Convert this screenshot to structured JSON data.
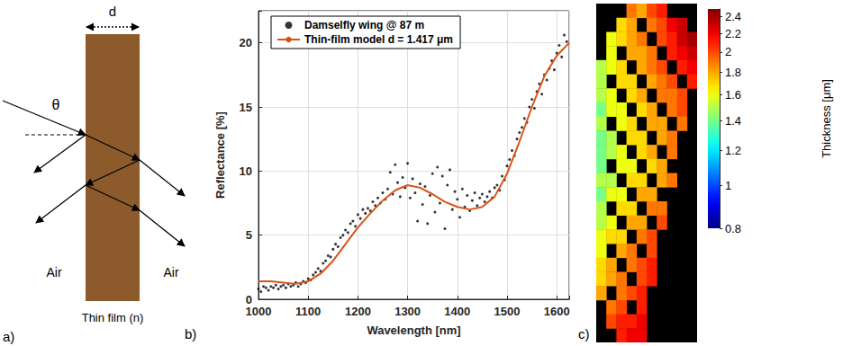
{
  "diagram": {
    "panel_label": "a)",
    "width_label": "d",
    "angle_label": "θ",
    "media": [
      "Air",
      "Air"
    ],
    "film_label": "Thin film (n)"
  },
  "chart_data": [
    {
      "panel_label": "b)",
      "type": "scatter",
      "x_label": "Wavelength [nm]",
      "y_label": "Reflectance [%]",
      "xlim": [
        1000,
        1625
      ],
      "ylim": [
        0,
        22.5
      ],
      "xticks": [
        1000,
        1100,
        1200,
        1300,
        1400,
        1500,
        1600
      ],
      "yticks": [
        0,
        5,
        10,
        15,
        20
      ],
      "grid": true,
      "legend": "upper left",
      "series": [
        {
          "name": "Damselfly wing @ 87 m",
          "type": "scatter",
          "marker": "dot",
          "color": "#000000",
          "x": [
            1000,
            1005,
            1010,
            1015,
            1020,
            1025,
            1030,
            1035,
            1040,
            1045,
            1050,
            1055,
            1060,
            1065,
            1070,
            1075,
            1080,
            1085,
            1090,
            1095,
            1100,
            1105,
            1110,
            1115,
            1120,
            1125,
            1130,
            1135,
            1140,
            1145,
            1150,
            1155,
            1160,
            1165,
            1170,
            1175,
            1180,
            1185,
            1190,
            1195,
            1200,
            1205,
            1210,
            1215,
            1220,
            1225,
            1230,
            1235,
            1240,
            1245,
            1250,
            1255,
            1260,
            1265,
            1270,
            1275,
            1280,
            1285,
            1290,
            1295,
            1300,
            1305,
            1310,
            1315,
            1320,
            1325,
            1330,
            1335,
            1340,
            1345,
            1350,
            1355,
            1360,
            1365,
            1370,
            1375,
            1380,
            1385,
            1390,
            1395,
            1400,
            1405,
            1410,
            1415,
            1420,
            1425,
            1430,
            1435,
            1440,
            1445,
            1450,
            1455,
            1460,
            1465,
            1470,
            1475,
            1480,
            1485,
            1490,
            1495,
            1500,
            1505,
            1510,
            1515,
            1520,
            1525,
            1530,
            1535,
            1540,
            1545,
            1550,
            1555,
            1560,
            1565,
            1570,
            1575,
            1580,
            1585,
            1590,
            1595,
            1600,
            1605,
            1610,
            1615,
            1620
          ],
          "values": [
            0.8,
            0.6,
            1.0,
            0.9,
            0.7,
            1.0,
            0.9,
            1.1,
            0.8,
            1.0,
            1.1,
            0.9,
            1.2,
            1.0,
            1.1,
            1.3,
            1.0,
            1.2,
            1.4,
            1.3,
            1.6,
            1.5,
            1.9,
            2.1,
            2.4,
            2.2,
            2.8,
            3.0,
            3.4,
            3.3,
            3.9,
            4.3,
            4.1,
            4.8,
            5.0,
            5.4,
            5.2,
            5.9,
            6.1,
            5.7,
            6.6,
            6.3,
            7.0,
            6.7,
            7.1,
            6.9,
            7.6,
            7.3,
            7.9,
            7.5,
            8.3,
            7.8,
            8.6,
            9.9,
            8.2,
            10.5,
            9.1,
            8.0,
            9.5,
            8.7,
            10.6,
            7.9,
            9.4,
            8.3,
            6.1,
            9.0,
            7.4,
            8.8,
            5.9,
            8.1,
            9.8,
            6.8,
            10.3,
            7.5,
            9.6,
            5.5,
            8.9,
            10.1,
            7.0,
            8.4,
            7.8,
            6.4,
            8.6,
            7.2,
            8.1,
            6.9,
            7.7,
            8.3,
            7.3,
            7.9,
            8.2,
            7.6,
            8.0,
            8.4,
            7.9,
            8.7,
            8.9,
            8.5,
            9.6,
            9.3,
            10.4,
            10.9,
            11.6,
            11.2,
            12.5,
            13.0,
            13.4,
            14.1,
            13.8,
            15.0,
            15.6,
            14.9,
            16.2,
            16.8,
            16.0,
            17.5,
            17.1,
            18.0,
            18.6,
            17.9,
            19.2,
            19.8,
            18.9,
            20.6,
            20.1
          ]
        },
        {
          "name": "Thin-film model d = 1.417 μm",
          "type": "line",
          "line_style": "solid",
          "color": "#d95319",
          "x": [
            1000,
            1025,
            1050,
            1075,
            1100,
            1125,
            1150,
            1175,
            1200,
            1225,
            1250,
            1275,
            1300,
            1325,
            1350,
            1375,
            1400,
            1425,
            1450,
            1475,
            1500,
            1525,
            1550,
            1575,
            1600,
            1625
          ],
          "values": [
            1.4,
            1.4,
            1.3,
            1.2,
            1.4,
            2.0,
            3.0,
            4.3,
            5.6,
            6.7,
            7.7,
            8.5,
            8.9,
            8.7,
            8.2,
            7.6,
            7.2,
            7.0,
            7.2,
            8.0,
            9.8,
            12.3,
            15.0,
            17.4,
            19.0,
            20.0
          ]
        }
      ]
    },
    {
      "panel_label": "c)",
      "type": "heatmap",
      "cells": [
        [
          null,
          null,
          null,
          1.9,
          1.8,
          2.0,
          2.1,
          null,
          null,
          null
        ],
        [
          null,
          null,
          1.7,
          1.8,
          null,
          1.9,
          2.0,
          2.2,
          2.3,
          null
        ],
        [
          null,
          1.6,
          1.7,
          1.8,
          1.9,
          null,
          2.0,
          2.1,
          2.3,
          2.4
        ],
        [
          null,
          1.6,
          null,
          1.8,
          1.8,
          1.9,
          null,
          2.1,
          2.2,
          2.3
        ],
        [
          1.5,
          1.6,
          1.7,
          null,
          1.8,
          1.9,
          2.0,
          null,
          2.1,
          2.2
        ],
        [
          1.5,
          null,
          1.7,
          1.7,
          null,
          1.8,
          1.9,
          2.0,
          null,
          2.1
        ],
        [
          1.5,
          1.6,
          null,
          1.7,
          1.8,
          null,
          1.9,
          1.9,
          2.0,
          null
        ],
        [
          1.4,
          1.6,
          1.6,
          null,
          1.7,
          1.8,
          null,
          1.9,
          2.0,
          null
        ],
        [
          1.5,
          null,
          1.6,
          1.7,
          null,
          1.8,
          1.8,
          null,
          1.9,
          null
        ],
        [
          1.4,
          1.5,
          null,
          1.7,
          1.7,
          null,
          1.8,
          1.9,
          null,
          null
        ],
        [
          1.4,
          1.5,
          1.6,
          null,
          1.7,
          1.8,
          null,
          1.9,
          null,
          null
        ],
        [
          1.4,
          null,
          1.6,
          1.6,
          null,
          1.7,
          1.8,
          null,
          null,
          null
        ],
        [
          1.5,
          1.5,
          null,
          1.7,
          1.7,
          null,
          1.8,
          1.9,
          null,
          null
        ],
        [
          1.4,
          1.6,
          1.6,
          null,
          1.8,
          1.8,
          null,
          null,
          null,
          null
        ],
        [
          1.5,
          null,
          1.7,
          1.7,
          null,
          1.9,
          1.9,
          null,
          null,
          null
        ],
        [
          1.5,
          1.6,
          null,
          1.8,
          1.8,
          null,
          2.0,
          null,
          null,
          null
        ],
        [
          1.6,
          1.7,
          1.7,
          null,
          1.9,
          2.0,
          null,
          null,
          null,
          null
        ],
        [
          1.6,
          null,
          1.8,
          1.9,
          null,
          2.0,
          null,
          null,
          null,
          null
        ],
        [
          1.7,
          1.8,
          null,
          1.9,
          2.0,
          2.1,
          null,
          null,
          null,
          null
        ],
        [
          1.7,
          1.8,
          1.9,
          null,
          2.0,
          2.1,
          null,
          null,
          null,
          null
        ],
        [
          1.8,
          null,
          1.9,
          2.0,
          2.1,
          null,
          null,
          null,
          null,
          null
        ],
        [
          null,
          1.9,
          2.0,
          null,
          2.1,
          null,
          null,
          null,
          null,
          null
        ],
        [
          null,
          2.0,
          2.1,
          2.1,
          2.2,
          null,
          null,
          null,
          null,
          null
        ],
        [
          null,
          null,
          2.1,
          2.2,
          2.2,
          null,
          null,
          null,
          null,
          null
        ]
      ],
      "colorbar": {
        "label": "Thickness [μm]",
        "range": [
          0.8,
          2.5
        ],
        "log": true,
        "ticks": [
          0.8,
          1,
          1.2,
          1.4,
          1.6,
          1.8,
          2,
          2.2,
          2.4
        ]
      }
    }
  ]
}
